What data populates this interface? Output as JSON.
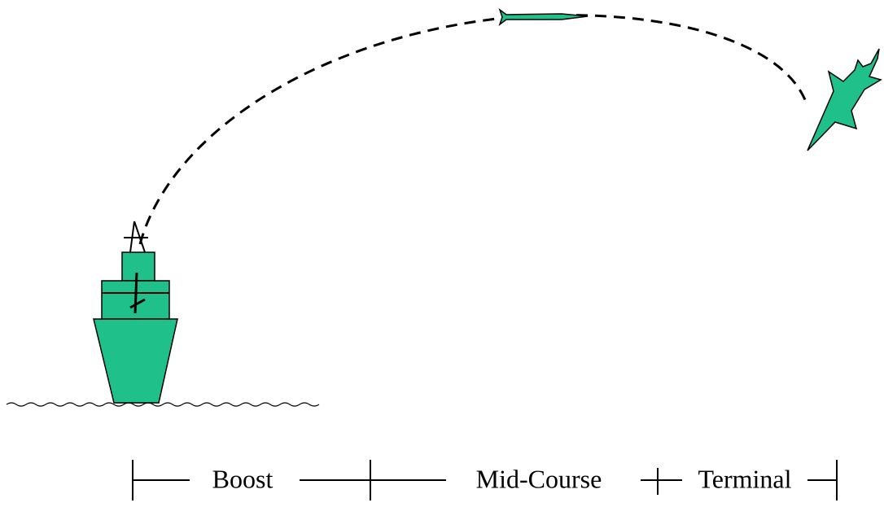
{
  "phases": [
    "Boost",
    "Mid-Course",
    "Terminal"
  ]
}
